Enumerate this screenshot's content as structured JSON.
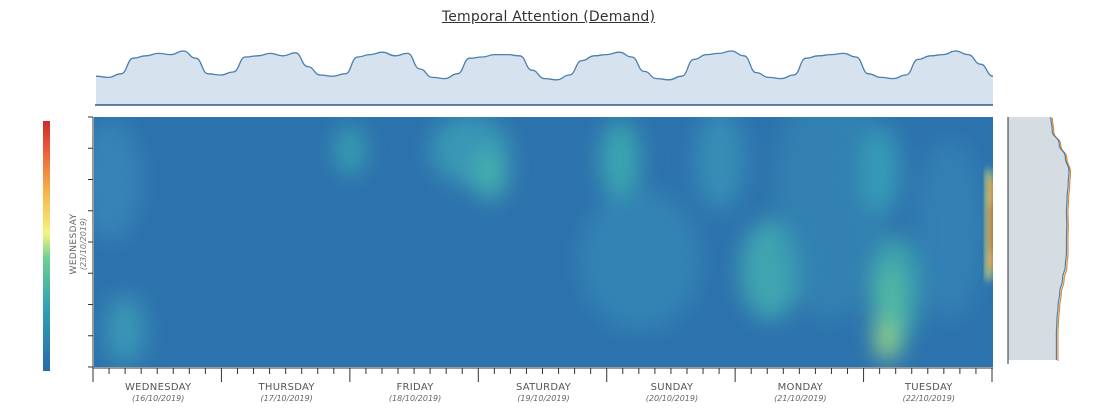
{
  "title": "Temporal Attention (Demand)",
  "y_axis": {
    "day": "WEDNESDAY",
    "date": "(23/10/2019)"
  },
  "colors": {
    "profile_fill": "#d6e2ee",
    "profile_line": "#4a7fb0",
    "side_line_1": "#e08a2a",
    "side_line_2": "#4a7fb0",
    "colorscale": [
      "#2a6aa8",
      "#2f92b8",
      "#3fb8a8",
      "#8fdc7a",
      "#f2f27a",
      "#f6b24a",
      "#e8603a",
      "#cf2a2a"
    ]
  },
  "chart_data": {
    "type": "heatmap",
    "title": "Temporal Attention (Demand)",
    "x_axis_days": [
      {
        "day": "WEDNESDAY",
        "date": "(16/10/2019)"
      },
      {
        "day": "THURSDAY",
        "date": "(17/10/2019)"
      },
      {
        "day": "FRIDAY",
        "date": "(18/10/2019)"
      },
      {
        "day": "SATURDAY",
        "date": "(19/10/2019)"
      },
      {
        "day": "SUNDAY",
        "date": "(20/10/2019)"
      },
      {
        "day": "MONDAY",
        "date": "(21/10/2019)"
      },
      {
        "day": "TUESDAY",
        "date": "(22/10/2019)"
      }
    ],
    "y_axis_label": "WEDNESDAY (23/10/2019)",
    "colorbar": "low (blue) to high (red)",
    "value_range": [
      0,
      1
    ],
    "top_profile_daily_shape": "two peaks per day, dip at day boundaries",
    "top_profile": [
      0.48,
      0.46,
      0.52,
      0.78,
      0.82,
      0.86,
      0.84,
      0.9,
      0.78,
      0.52,
      0.5,
      0.55,
      0.8,
      0.82,
      0.86,
      0.82,
      0.87,
      0.64,
      0.5,
      0.48,
      0.52,
      0.8,
      0.84,
      0.88,
      0.82,
      0.86,
      0.6,
      0.46,
      0.44,
      0.52,
      0.78,
      0.8,
      0.84,
      0.84,
      0.82,
      0.58,
      0.44,
      0.42,
      0.5,
      0.74,
      0.82,
      0.84,
      0.88,
      0.8,
      0.56,
      0.44,
      0.42,
      0.48,
      0.76,
      0.84,
      0.86,
      0.9,
      0.82,
      0.54,
      0.46,
      0.44,
      0.5,
      0.78,
      0.82,
      0.84,
      0.86,
      0.8,
      0.52,
      0.46,
      0.44,
      0.5,
      0.76,
      0.82,
      0.84,
      0.9,
      0.84,
      0.68,
      0.48
    ],
    "side_profile": [
      0.1,
      0.15,
      0.4,
      0.62,
      0.75,
      0.72,
      0.68,
      0.66,
      0.67,
      0.66,
      0.66,
      0.62,
      0.52,
      0.42,
      0.36,
      0.32,
      0.3,
      0.3,
      0.3
    ]
  }
}
